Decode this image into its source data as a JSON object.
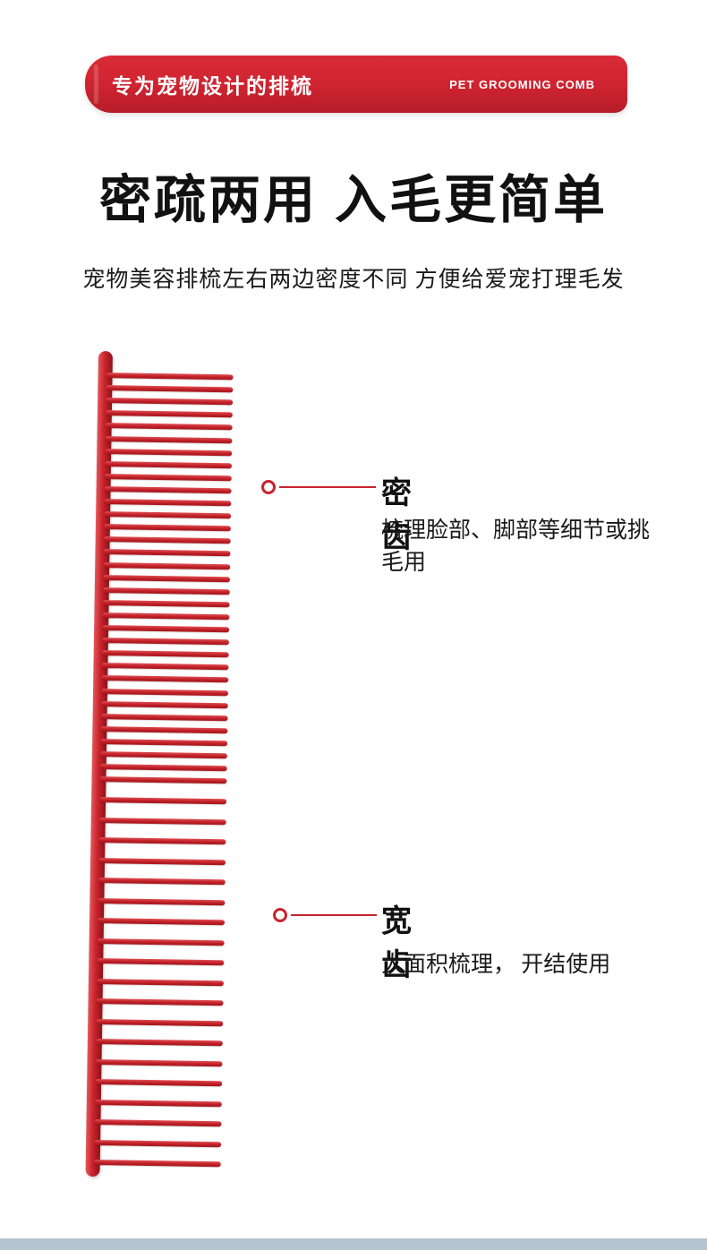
{
  "banner": {
    "title_cn": "专为宠物设计的排梳",
    "title_en": "PET GROOMING COMB",
    "bg_color": "#ce2330"
  },
  "headline": "密疏两用 入毛更简单",
  "subtitle": "宠物美容排梳左右两边密度不同 方便给爱宠打理毛发",
  "callouts": [
    {
      "label": "密齿",
      "desc": "梳理脸部、脚部等细节或挑毛用"
    },
    {
      "label": "宽齿",
      "desc": "大面积梳理， 开结使用"
    }
  ],
  "comb": {
    "color": "#c8242e",
    "dense_teeth": 33,
    "dense_start": 24,
    "dense_spacing": 14.1,
    "wide_teeth": 19,
    "wide_start": 498,
    "wide_spacing": 22.5
  },
  "theme": {
    "accent_red": "#c8242e",
    "footer_bar_color": "#b5c5cf"
  }
}
